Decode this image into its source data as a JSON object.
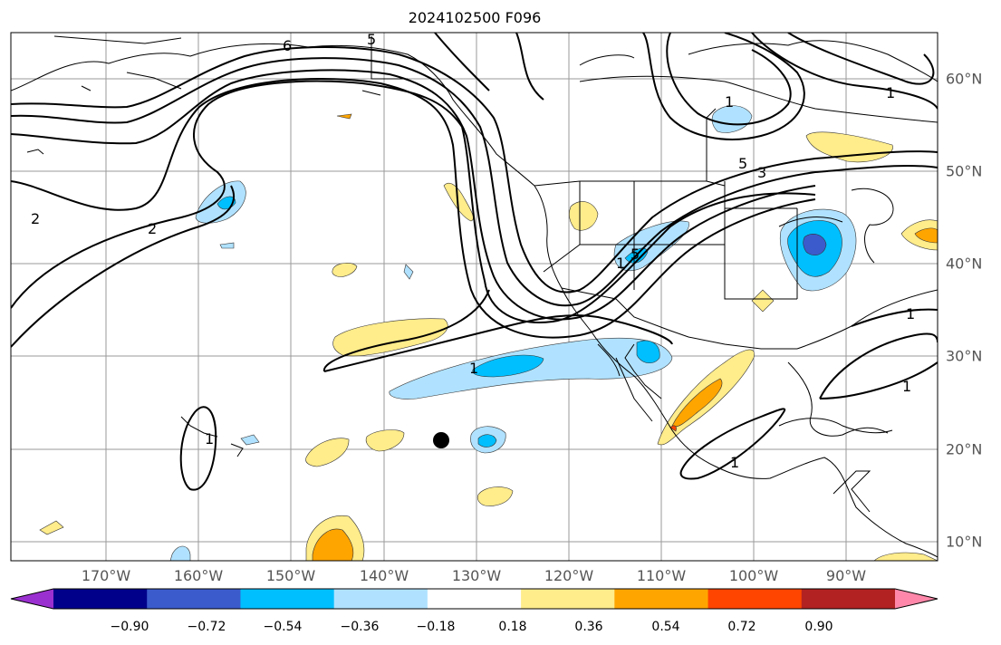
{
  "figure": {
    "title": "2024102500 F096"
  },
  "map": {
    "lon_labels": [
      "170°W",
      "160°W",
      "150°W",
      "140°W",
      "130°W",
      "120°W",
      "110°W",
      "100°W",
      "90°W"
    ],
    "lat_labels": [
      "60°N",
      "50°N",
      "40°N",
      "30°N",
      "20°N",
      "10°N"
    ],
    "contour_labels": [
      "6",
      "5",
      "2",
      "2",
      "1",
      "1",
      "1",
      "1",
      "1",
      "1",
      "5",
      "3",
      "1",
      "5",
      "1"
    ],
    "marker": {
      "description": "black dot",
      "lon": -134,
      "lat": 21
    }
  },
  "colorbar": {
    "ticks": [
      "−0.90",
      "−0.72",
      "−0.54",
      "−0.36",
      "−0.18",
      "0.18",
      "0.36",
      "0.54",
      "0.72",
      "0.90"
    ],
    "colors": [
      "#9b30d0",
      "#00008b",
      "#3b5bcc",
      "#00bfff",
      "#b0e2ff",
      "#ffffff",
      "#ffec8b",
      "#ffa500",
      "#ff4500",
      "#b22222",
      "#ff88aa"
    ]
  }
}
